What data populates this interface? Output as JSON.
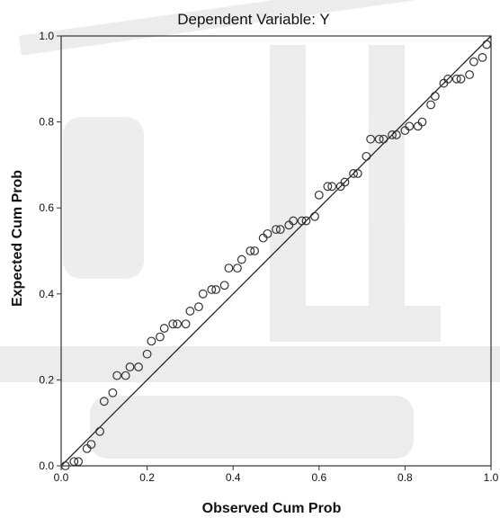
{
  "chart_data": {
    "type": "scatter",
    "title": "Dependent Variable: Y",
    "xlabel": "Observed Cum Prob",
    "ylabel": "Expected Cum Prob",
    "xlim": [
      0,
      1
    ],
    "ylim": [
      0,
      1
    ],
    "x_ticks": [
      "0.0",
      "0.2",
      "0.4",
      "0.6",
      "0.8",
      "1.0"
    ],
    "y_ticks": [
      "0.0",
      "0.2",
      "0.4",
      "0.6",
      "0.8",
      "1.0"
    ],
    "grid": false,
    "legend": "none",
    "reference_line": [
      [
        0,
        0
      ],
      [
        1,
        1
      ]
    ],
    "points": [
      [
        0.01,
        0.0
      ],
      [
        0.03,
        0.01
      ],
      [
        0.04,
        0.01
      ],
      [
        0.06,
        0.04
      ],
      [
        0.07,
        0.05
      ],
      [
        0.09,
        0.08
      ],
      [
        0.1,
        0.15
      ],
      [
        0.12,
        0.17
      ],
      [
        0.13,
        0.21
      ],
      [
        0.15,
        0.21
      ],
      [
        0.16,
        0.23
      ],
      [
        0.18,
        0.23
      ],
      [
        0.2,
        0.26
      ],
      [
        0.21,
        0.29
      ],
      [
        0.23,
        0.3
      ],
      [
        0.24,
        0.32
      ],
      [
        0.26,
        0.33
      ],
      [
        0.27,
        0.33
      ],
      [
        0.29,
        0.33
      ],
      [
        0.3,
        0.36
      ],
      [
        0.32,
        0.37
      ],
      [
        0.33,
        0.4
      ],
      [
        0.35,
        0.41
      ],
      [
        0.36,
        0.41
      ],
      [
        0.38,
        0.42
      ],
      [
        0.39,
        0.46
      ],
      [
        0.41,
        0.46
      ],
      [
        0.42,
        0.48
      ],
      [
        0.44,
        0.5
      ],
      [
        0.45,
        0.5
      ],
      [
        0.47,
        0.53
      ],
      [
        0.48,
        0.54
      ],
      [
        0.5,
        0.55
      ],
      [
        0.51,
        0.55
      ],
      [
        0.53,
        0.56
      ],
      [
        0.54,
        0.57
      ],
      [
        0.56,
        0.57
      ],
      [
        0.57,
        0.57
      ],
      [
        0.59,
        0.58
      ],
      [
        0.6,
        0.63
      ],
      [
        0.62,
        0.65
      ],
      [
        0.63,
        0.65
      ],
      [
        0.65,
        0.65
      ],
      [
        0.66,
        0.66
      ],
      [
        0.68,
        0.68
      ],
      [
        0.69,
        0.68
      ],
      [
        0.71,
        0.72
      ],
      [
        0.72,
        0.76
      ],
      [
        0.74,
        0.76
      ],
      [
        0.75,
        0.76
      ],
      [
        0.77,
        0.77
      ],
      [
        0.78,
        0.77
      ],
      [
        0.8,
        0.78
      ],
      [
        0.81,
        0.79
      ],
      [
        0.83,
        0.79
      ],
      [
        0.84,
        0.8
      ],
      [
        0.86,
        0.84
      ],
      [
        0.87,
        0.86
      ],
      [
        0.89,
        0.89
      ],
      [
        0.9,
        0.9
      ],
      [
        0.92,
        0.9
      ],
      [
        0.93,
        0.9
      ],
      [
        0.95,
        0.91
      ],
      [
        0.96,
        0.94
      ],
      [
        0.98,
        0.95
      ],
      [
        0.99,
        0.98
      ]
    ]
  }
}
